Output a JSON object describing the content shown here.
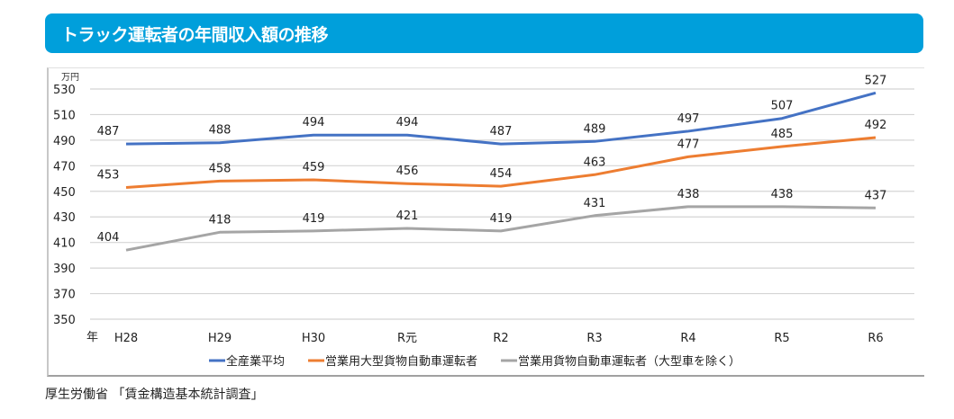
{
  "header": {
    "title": "トラック運転者の年間収入額の推移"
  },
  "source": "厚生労働省 「賃金構造基本統計調査」",
  "chart_data": {
    "type": "line",
    "title": "トラック運転者の年間収入額の推移",
    "ylabel": "万円",
    "xlabel": "年",
    "ylim": [
      350,
      530
    ],
    "yticks": [
      350,
      370,
      390,
      410,
      430,
      450,
      470,
      490,
      510,
      530
    ],
    "categories": [
      "H28",
      "H29",
      "H30",
      "R元",
      "R2",
      "R3",
      "R4",
      "R5",
      "R6"
    ],
    "grid": true,
    "legend_position": "bottom",
    "series": [
      {
        "name": "全産業平均",
        "color": "#4472c4",
        "values": [
          487,
          488,
          494,
          494,
          487,
          489,
          497,
          507,
          527
        ]
      },
      {
        "name": "営業用大型貨物自動車運転者",
        "color": "#ed7d31",
        "values": [
          453,
          458,
          459,
          456,
          454,
          463,
          477,
          485,
          492
        ]
      },
      {
        "name": "営業用貨物自動車運転者（大型車を除く）",
        "color": "#a5a5a5",
        "values": [
          404,
          418,
          419,
          421,
          419,
          431,
          438,
          438,
          437
        ]
      }
    ]
  }
}
